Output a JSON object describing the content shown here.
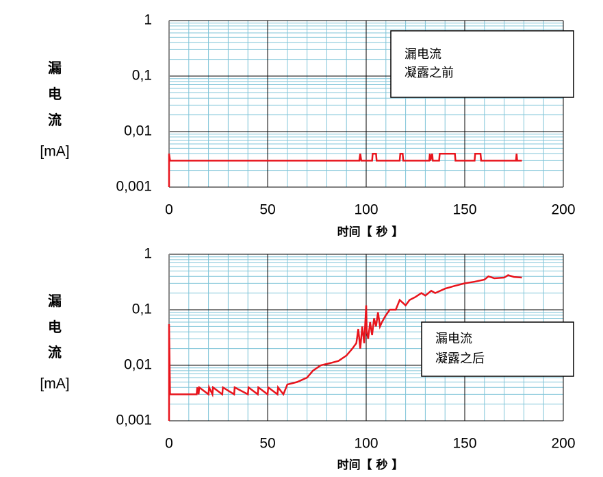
{
  "chart_data": [
    {
      "type": "line",
      "ylabel": "漏电流",
      "ylabel_unit": "[mA]",
      "xlabel": "时间【 秒 】",
      "annotation": [
        "漏电流",
        "凝露之前"
      ],
      "log_y": true,
      "grid": true,
      "minor_grid": true,
      "color": "#e8141c",
      "xlim": [
        0,
        200
      ],
      "xticks": [
        0,
        50,
        100,
        150,
        200
      ],
      "ylim": [
        0.001,
        1
      ],
      "yticks": [
        {
          "value": 0.001,
          "label": "0,001"
        },
        {
          "value": 0.01,
          "label": "0,01"
        },
        {
          "value": 0.1,
          "label": "0,1"
        },
        1
      ],
      "x": [
        0,
        0,
        0.5,
        96.5,
        97,
        97.5,
        103,
        103.3,
        105,
        105.3,
        117,
        117.3,
        118.5,
        118.8,
        132,
        132.3,
        132.6,
        133.5,
        133.8,
        137,
        137.3,
        145,
        145.3,
        155,
        155.3,
        158,
        158.3,
        176,
        176.3,
        176.6,
        179
      ],
      "values": [
        0.001,
        0.004,
        0.003,
        0.003,
        0.004,
        0.003,
        0.003,
        0.004,
        0.004,
        0.003,
        0.003,
        0.004,
        0.004,
        0.003,
        0.003,
        0.004,
        0.003,
        0.004,
        0.003,
        0.003,
        0.004,
        0.004,
        0.003,
        0.003,
        0.004,
        0.004,
        0.003,
        0.003,
        0.004,
        0.003,
        0.003
      ]
    },
    {
      "type": "line",
      "ylabel": "漏电流",
      "ylabel_unit": "[mA]",
      "xlabel": "时间【 秒 】",
      "annotation": [
        "漏电流",
        "凝露之后"
      ],
      "log_y": true,
      "grid": true,
      "minor_grid": true,
      "color": "#e8141c",
      "xlim": [
        0,
        200
      ],
      "xticks": [
        0,
        50,
        100,
        150,
        200
      ],
      "ylim": [
        0.001,
        1
      ],
      "yticks": [
        {
          "value": 0.001,
          "label": "0,001"
        },
        {
          "value": 0.01,
          "label": "0,01"
        },
        {
          "value": 0.1,
          "label": "0,1"
        },
        1
      ],
      "x": [
        0,
        0,
        0.5,
        14,
        14.3,
        15,
        15.3,
        20,
        20.3,
        22,
        22.3,
        27,
        27.3,
        33,
        33.3,
        40,
        40.3,
        45,
        45.3,
        50,
        50.3,
        55,
        55.3,
        58,
        60,
        65,
        70,
        73,
        77,
        82,
        86,
        90,
        93,
        95,
        96,
        97,
        98,
        99,
        100,
        100.3,
        101,
        102,
        103,
        104,
        105,
        106,
        107,
        108,
        110,
        112,
        115,
        117,
        120,
        122,
        125,
        128,
        130,
        133,
        135,
        140,
        145,
        150,
        155,
        160,
        162,
        165,
        170,
        172,
        175,
        179
      ],
      "values": [
        0.001,
        0.055,
        0.003,
        0.003,
        0.004,
        0.003,
        0.004,
        0.003,
        0.004,
        0.003,
        0.004,
        0.003,
        0.004,
        0.003,
        0.004,
        0.003,
        0.004,
        0.003,
        0.004,
        0.003,
        0.004,
        0.003,
        0.004,
        0.003,
        0.0045,
        0.005,
        0.006,
        0.008,
        0.01,
        0.011,
        0.012,
        0.015,
        0.02,
        0.025,
        0.045,
        0.02,
        0.05,
        0.025,
        0.12,
        0.04,
        0.03,
        0.06,
        0.035,
        0.07,
        0.05,
        0.09,
        0.05,
        0.06,
        0.08,
        0.1,
        0.1,
        0.15,
        0.12,
        0.15,
        0.17,
        0.2,
        0.18,
        0.22,
        0.2,
        0.24,
        0.27,
        0.3,
        0.32,
        0.35,
        0.4,
        0.37,
        0.38,
        0.42,
        0.39,
        0.38
      ]
    }
  ]
}
